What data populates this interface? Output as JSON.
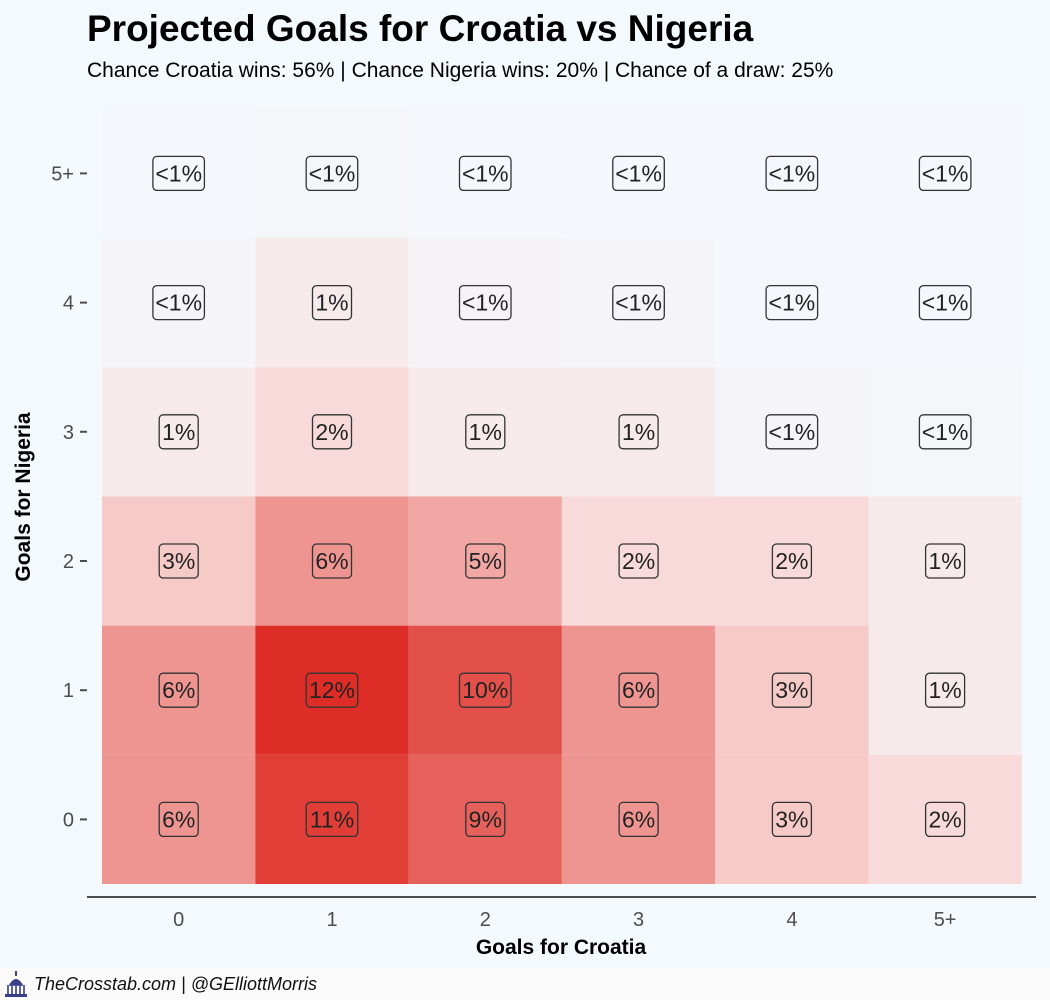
{
  "chart_data": {
    "type": "heatmap",
    "title": "Projected Goals for Croatia vs Nigeria",
    "subtitle": "Chance Croatia wins: 56% | Chance Nigeria wins: 20% | Chance of a draw: 25%",
    "xlabel": "Goals for Croatia",
    "ylabel": "Goals for Nigeria",
    "x_categories": [
      "0",
      "1",
      "2",
      "3",
      "4",
      "5+"
    ],
    "y_categories": [
      "0",
      "1",
      "2",
      "3",
      "4",
      "5+"
    ],
    "cells": [
      [
        6,
        11,
        9,
        6,
        3,
        2
      ],
      [
        6,
        12,
        10,
        6,
        3,
        1
      ],
      [
        3,
        6,
        5,
        2,
        2,
        1
      ],
      [
        1,
        2,
        1,
        1,
        0.3,
        0.2
      ],
      [
        0.3,
        1,
        0.4,
        0.3,
        0.1,
        0.05
      ],
      [
        0.1,
        0.2,
        0.1,
        0.1,
        0.05,
        0.05
      ]
    ],
    "labels": [
      [
        "6%",
        "11%",
        "9%",
        "6%",
        "3%",
        "2%"
      ],
      [
        "6%",
        "12%",
        "10%",
        "6%",
        "3%",
        "1%"
      ],
      [
        "3%",
        "6%",
        "5%",
        "2%",
        "2%",
        "1%"
      ],
      [
        "1%",
        "2%",
        "1%",
        "1%",
        "<1%",
        "<1%"
      ],
      [
        "<1%",
        "1%",
        "<1%",
        "<1%",
        "<1%",
        "<1%"
      ],
      [
        "<1%",
        "<1%",
        "<1%",
        "<1%",
        "<1%",
        "<1%"
      ]
    ],
    "color_low": "#f4f9fd",
    "color_high": "#de2d26"
  },
  "footer": {
    "credit": "TheCrosstab.com | @GElliottMorris",
    "logo_icon": "capitol-dome-icon"
  }
}
